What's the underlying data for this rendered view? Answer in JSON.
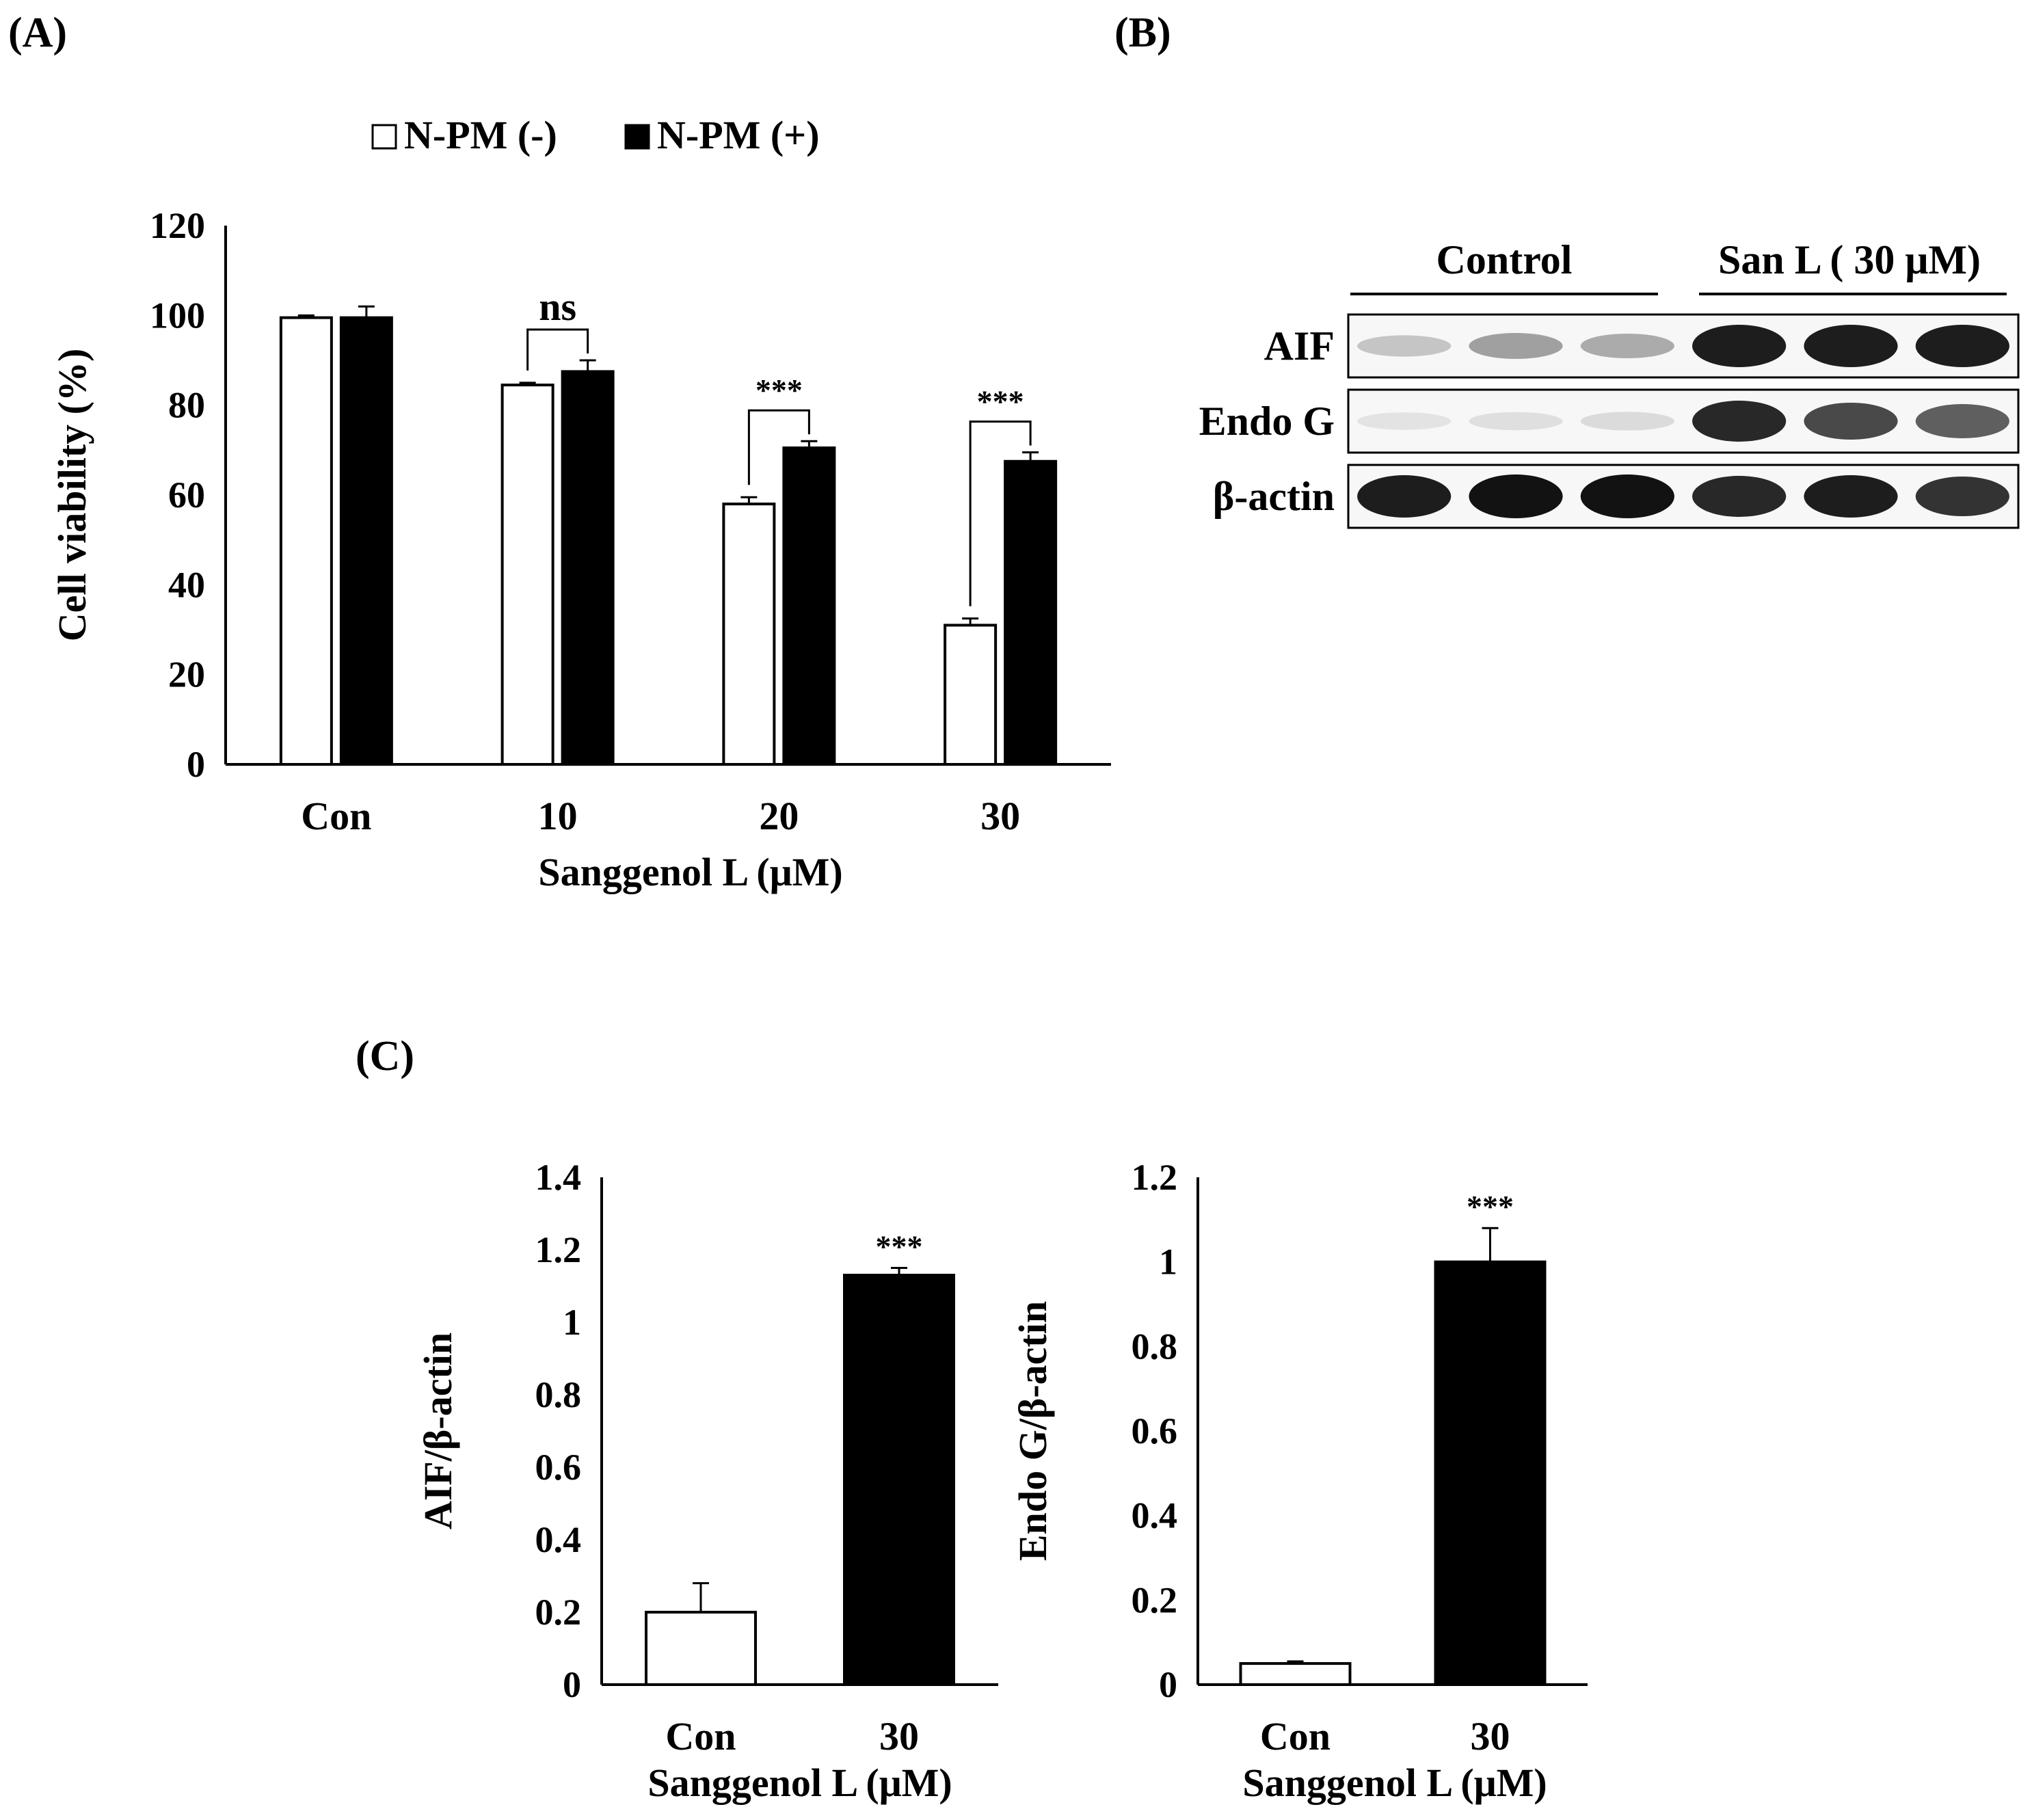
{
  "panels": {
    "A": {
      "label": "(A)"
    },
    "B": {
      "label": "(B)"
    },
    "C": {
      "label": "(C)"
    }
  },
  "chart_data": [
    {
      "id": "A",
      "type": "bar",
      "title": "",
      "xlabel": "Sanggenol L (μM)",
      "ylabel": "Cell viability (%)",
      "ylim": [
        0,
        120
      ],
      "yticks": [
        "0",
        "20",
        "40",
        "60",
        "80",
        "100",
        "120"
      ],
      "categories": [
        "Con",
        "10",
        "20",
        "30"
      ],
      "series": [
        {
          "name": "N-PM (-)",
          "fill": "#ffffff",
          "values": [
            99.5,
            84.5,
            58,
            31
          ],
          "errors": [
            0.5,
            0.5,
            1.5,
            1.5
          ]
        },
        {
          "name": "N-PM (+)",
          "fill": "#000000",
          "values": [
            99.5,
            87.5,
            70.5,
            67.5
          ],
          "errors": [
            2.5,
            2.5,
            1.5,
            2
          ]
        }
      ],
      "legend": {
        "position": "top",
        "items": [
          "N-PM (-)",
          "N-PM (+)"
        ]
      },
      "annotations": [
        {
          "category": "10",
          "text": "ns"
        },
        {
          "category": "20",
          "text": "***"
        },
        {
          "category": "30",
          "text": "***"
        }
      ]
    },
    {
      "id": "C-AIF",
      "type": "bar",
      "xlabel": "Sanggenol L (μM)",
      "ylabel": "AIF/β-actin",
      "ylim": [
        0,
        1.4
      ],
      "yticks": [
        "0",
        "0.2",
        "0.4",
        "0.6",
        "0.8",
        "1",
        "1.2",
        "1.4"
      ],
      "categories": [
        "Con",
        "30"
      ],
      "values": [
        0.2,
        1.13
      ],
      "errors": [
        0.08,
        0.02
      ],
      "fills": [
        "#ffffff",
        "#000000"
      ],
      "annotations": [
        {
          "category": "30",
          "text": "***"
        }
      ]
    },
    {
      "id": "C-EndoG",
      "type": "bar",
      "xlabel": "Sanggenol L (μM)",
      "ylabel": "Endo G/β-actin",
      "ylim": [
        0,
        1.2
      ],
      "yticks": [
        "0",
        "0.2",
        "0.4",
        "0.6",
        "0.8",
        "1",
        "1.2"
      ],
      "categories": [
        "Con",
        "30"
      ],
      "values": [
        0.05,
        1.0
      ],
      "errors": [
        0.005,
        0.08
      ],
      "fills": [
        "#ffffff",
        "#000000"
      ],
      "annotations": [
        {
          "category": "30",
          "text": "***"
        }
      ]
    }
  ],
  "blot": {
    "groups": [
      "Control",
      "San L ( 30 μM)"
    ],
    "rows": [
      {
        "label": "AIF",
        "intensities": [
          0.18,
          0.35,
          0.3,
          0.95,
          0.95,
          0.95
        ]
      },
      {
        "label": "Endo G",
        "intensities": [
          0.04,
          0.06,
          0.08,
          0.9,
          0.75,
          0.65
        ]
      },
      {
        "label": "β-actin",
        "intensities": [
          0.95,
          1.0,
          1.0,
          0.9,
          0.95,
          0.85
        ]
      }
    ]
  }
}
